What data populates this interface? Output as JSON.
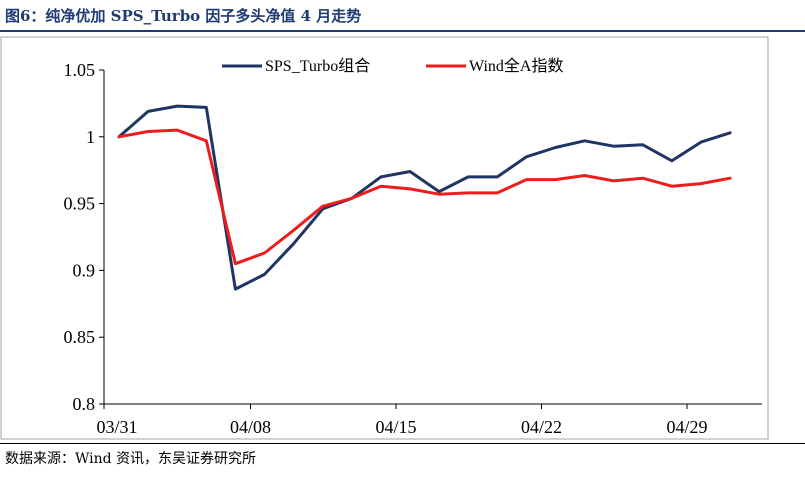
{
  "figure": {
    "title": "图6：纯净优加 SPS_Turbo 因子多头净值 4 月走势",
    "source": "数据来源：Wind 资讯，东吴证券研究所"
  },
  "chart_data": {
    "type": "line",
    "title": "",
    "xlabel": "",
    "ylabel": "",
    "ylim": [
      0.8,
      1.05
    ],
    "yticks": [
      0.8,
      0.85,
      0.9,
      0.95,
      1,
      1.05
    ],
    "ytick_labels": [
      "0.8",
      "0.85",
      "0.9",
      "0.95",
      "1",
      "1.05"
    ],
    "x_count": 22,
    "xtick_index": [
      0,
      5,
      10,
      15,
      20
    ],
    "xtick_labels": [
      "03/31",
      "04/08",
      "04/15",
      "04/22",
      "04/29"
    ],
    "legend_position": "top-center",
    "grid": false,
    "series": [
      {
        "name": "SPS_Turbo组合",
        "color": "#1f3564",
        "values": [
          1.0,
          1.019,
          1.023,
          1.022,
          0.886,
          0.897,
          0.92,
          0.946,
          0.954,
          0.97,
          0.974,
          0.959,
          0.97,
          0.97,
          0.985,
          0.992,
          0.997,
          0.993,
          0.994,
          0.982,
          0.996,
          1.003
        ]
      },
      {
        "name": "Wind全A指数",
        "color": "#ee1c1c",
        "values": [
          1.0,
          1.004,
          1.005,
          0.997,
          0.905,
          0.913,
          0.93,
          0.948,
          0.954,
          0.963,
          0.961,
          0.957,
          0.958,
          0.958,
          0.968,
          0.968,
          0.971,
          0.967,
          0.969,
          0.963,
          0.965,
          0.969
        ]
      }
    ]
  }
}
